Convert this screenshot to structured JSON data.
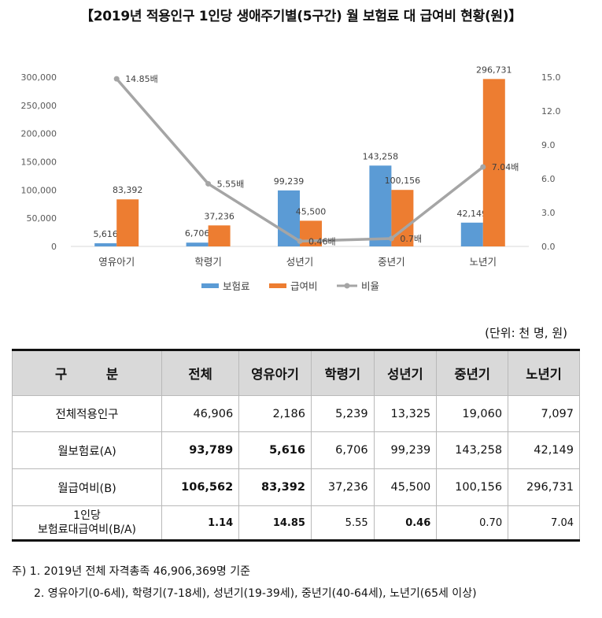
{
  "title": "【2019년 적용인구 1인당 생애주기별(5구간) 월 보험료 대 급여비 현황(원)】",
  "unit_label": "(단위: 천 명, 원)",
  "chart_data": {
    "type": "bar",
    "categories": [
      "영유아기",
      "학령기",
      "성년기",
      "중년기",
      "노년기"
    ],
    "series": [
      {
        "name": "보험료",
        "color": "#5B9BD5",
        "values": [
          5616,
          6706,
          99239,
          143258,
          42149
        ],
        "labels": [
          "5,616",
          "6,706",
          "99,239",
          "143,258",
          "42,149"
        ]
      },
      {
        "name": "급여비",
        "color": "#ED7D31",
        "values": [
          83392,
          37236,
          45500,
          100156,
          296731
        ],
        "labels": [
          "83,392",
          "37,236",
          "45,500",
          "100,156",
          "296,731"
        ]
      }
    ],
    "line_series": {
      "name": "비율",
      "color": "#A5A5A5",
      "values": [
        14.85,
        5.55,
        0.46,
        0.7,
        7.04
      ],
      "labels": [
        "14.85배",
        "5.55배",
        "0.46배",
        "0.7배",
        "7.04배"
      ],
      "axis": "right"
    },
    "ylim": [
      0,
      300000
    ],
    "yticks": [
      "0",
      "50,000",
      "100,000",
      "150,000",
      "200,000",
      "250,000",
      "300,000"
    ],
    "y2lim": [
      0,
      15
    ],
    "y2ticks": [
      "0.0",
      "3.0",
      "6.0",
      "9.0",
      "12.0",
      "15.0"
    ],
    "legend": [
      "보험료",
      "급여비",
      "비율"
    ]
  },
  "table": {
    "headers": [
      "구 분",
      "전체",
      "영유아기",
      "학령기",
      "성년기",
      "중년기",
      "노년기"
    ],
    "rows": [
      {
        "label": "전체적용인구",
        "cells": [
          "46,906",
          "2,186",
          "5,239",
          "13,325",
          "19,060",
          "7,097"
        ]
      },
      {
        "label": "월보험료(A)",
        "cells": [
          "93,789",
          "5,616",
          "6,706",
          "99,239",
          "143,258",
          "42,149"
        ]
      },
      {
        "label": "월급여비(B)",
        "cells": [
          "106,562",
          "83,392",
          "37,236",
          "45,500",
          "100,156",
          "296,731"
        ]
      },
      {
        "label_line1": "1인당",
        "label_line2": "보험료대급여비(B/A)",
        "cells": [
          "1.14",
          "14.85",
          "5.55",
          "0.46",
          "0.70",
          "7.04"
        ]
      }
    ]
  },
  "notes": [
    "주) 1. 2019년 전체 자격총족 46,906,369명 기준",
    "2. 영유아기(0-6세), 학령기(7-18세), 성년기(19-39세), 중년기(40-64세), 노년기(65세 이상)"
  ]
}
